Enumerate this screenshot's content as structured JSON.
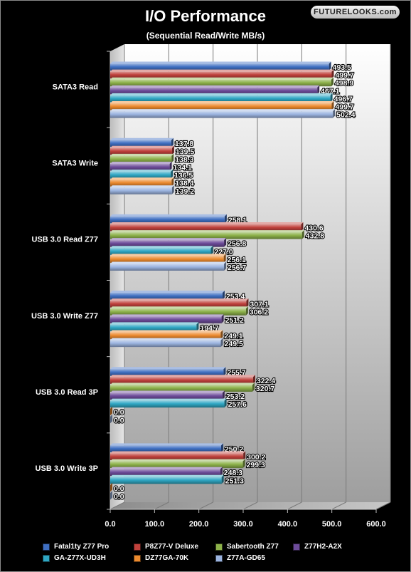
{
  "logo_text": "FUTURELOOKS.com",
  "chart_data": {
    "type": "bar",
    "orientation": "horizontal",
    "title": "I/O Performance",
    "subtitle": "(Sequential Read/Write MB/s)",
    "categories": [
      "SATA3 Read",
      "SATA3 Write",
      "USB 3.0 Read Z77",
      "USB 3.0 Write Z77",
      "USB 3.0 Read 3P",
      "USB 3.0 Write 3P"
    ],
    "xlim": [
      0,
      600
    ],
    "xticks": [
      "0.0",
      "100.0",
      "200.0",
      "300.0",
      "400.0",
      "500.0",
      "600.0"
    ],
    "grid": true,
    "legend_position": "bottom",
    "series": [
      {
        "name": "Fatal1ty Z77 Pro",
        "color": "#3f6fc2",
        "values": [
          493.5,
          137.8,
          258.1,
          253.4,
          255.7,
          250.2
        ],
        "labels": [
          "493.5",
          "137.8",
          "258.1",
          "253.4",
          "255.7",
          "250.2"
        ]
      },
      {
        "name": "P8Z77-V Deluxe",
        "color": "#c0413c",
        "values": [
          499.7,
          139.5,
          430.6,
          307.1,
          322.4,
          300.2
        ],
        "labels": [
          "499.7",
          "139.5",
          "430.6",
          "307.1",
          "322.4",
          "300.2"
        ]
      },
      {
        "name": "Sabertooth Z77",
        "color": "#8db24a",
        "values": [
          498.9,
          138.3,
          432.8,
          306.2,
          320.7,
          299.3
        ],
        "labels": [
          "498.9",
          "138.3",
          "432.8",
          "306.2",
          "320.7",
          "299.3"
        ]
      },
      {
        "name": "Z77H2-A2X",
        "color": "#6d4c9a",
        "values": [
          467.1,
          134.1,
          256.8,
          251.2,
          253.2,
          248.3
        ],
        "labels": [
          "467.1",
          "134.1",
          "256.8",
          "251.2",
          "253.2",
          "248.3"
        ]
      },
      {
        "name": "GA-Z77X-UD3H",
        "color": "#2fa7c4",
        "values": [
          496.7,
          136.5,
          227.0,
          194.7,
          257.6,
          251.3
        ],
        "labels": [
          "496.7",
          "136.5",
          "227.0",
          "194.7",
          "257.6",
          "251.3"
        ]
      },
      {
        "name": "DZ77GA-70K",
        "color": "#ec8a2e",
        "values": [
          499.7,
          138.4,
          256.1,
          249.1,
          0.0,
          0.0
        ],
        "labels": [
          "499.7",
          "138.4",
          "256.1",
          "249.1",
          "0.0",
          "0.0"
        ]
      },
      {
        "name": "Z77A-GD65",
        "color": "#9bb4e0",
        "values": [
          502.4,
          139.2,
          256.7,
          249.5,
          0.0,
          0.0
        ],
        "labels": [
          "502.4",
          "139.2",
          "256.7",
          "249.5",
          "0.0",
          "0.0"
        ]
      }
    ]
  }
}
